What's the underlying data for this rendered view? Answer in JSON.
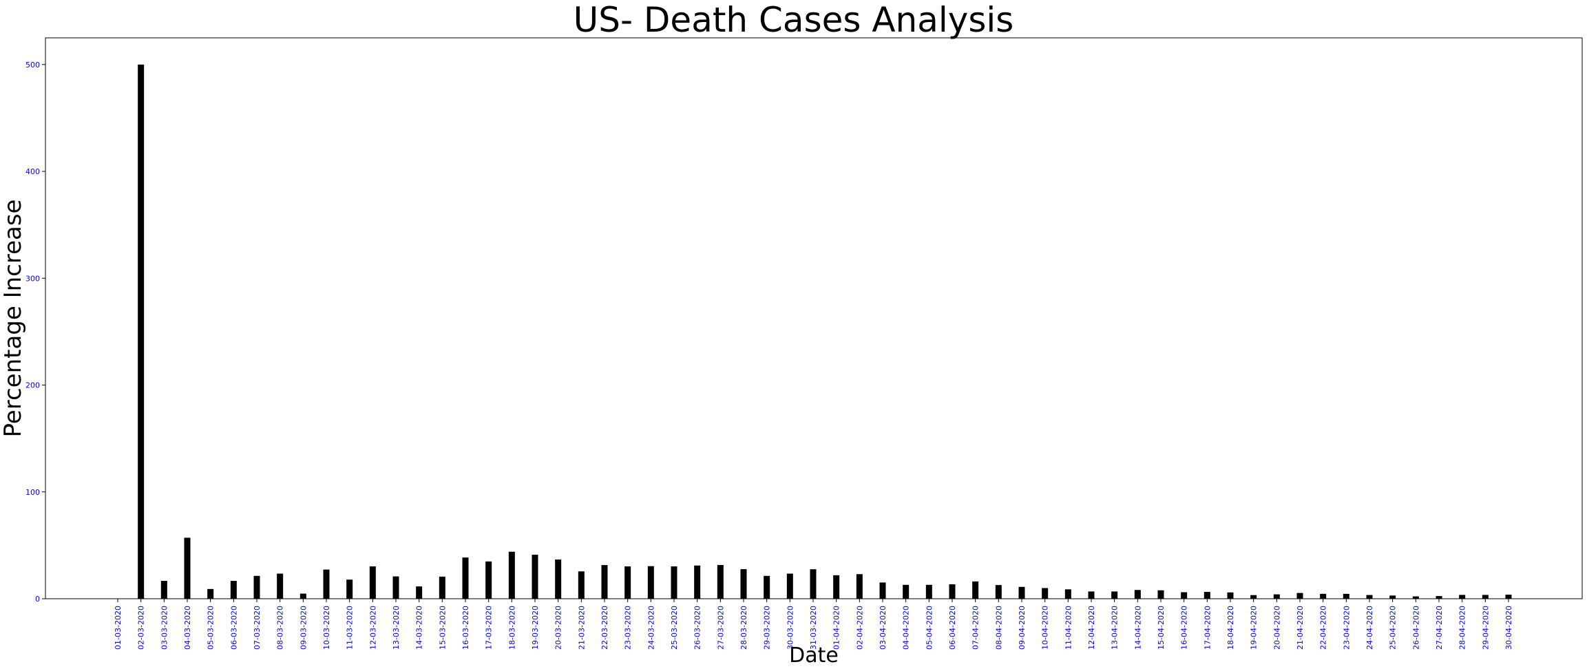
{
  "chart_data": {
    "type": "bar",
    "title": "US- Death Cases Analysis",
    "xlabel": "Date",
    "ylabel": "Percentage Increase",
    "ylim": [
      0,
      525
    ],
    "yticks": [
      0,
      100,
      200,
      300,
      400,
      500
    ],
    "grid": false,
    "bar_color": "#000000",
    "tick_label_color": "#0000ff",
    "categories": [
      "01-03-2020",
      "02-03-2020",
      "03-03-2020",
      "04-03-2020",
      "05-03-2020",
      "06-03-2020",
      "07-03-2020",
      "08-03-2020",
      "09-03-2020",
      "10-03-2020",
      "11-03-2020",
      "12-03-2020",
      "13-03-2020",
      "14-03-2020",
      "15-03-2020",
      "16-03-2020",
      "17-03-2020",
      "18-03-2020",
      "19-03-2020",
      "20-03-2020",
      "21-03-2020",
      "22-03-2020",
      "23-03-2020",
      "24-03-2020",
      "25-03-2020",
      "26-03-2020",
      "27-03-2020",
      "28-03-2020",
      "29-03-2020",
      "30-03-2020",
      "31-03-2020",
      "01-04-2020",
      "02-04-2020",
      "03-04-2020",
      "04-04-2020",
      "05-04-2020",
      "06-04-2020",
      "07-04-2020",
      "08-04-2020",
      "09-04-2020",
      "10-04-2020",
      "11-04-2020",
      "12-04-2020",
      "13-04-2020",
      "14-04-2020",
      "15-04-2020",
      "16-04-2020",
      "17-04-2020",
      "18-04-2020",
      "19-04-2020",
      "20-04-2020",
      "21-04-2020",
      "22-04-2020",
      "23-04-2020",
      "24-04-2020",
      "25-04-2020",
      "26-04-2020",
      "27-04-2020",
      "28-04-2020",
      "29-04-2020",
      "30-04-2020"
    ],
    "values": [
      0,
      500,
      16.7,
      57.1,
      9.1,
      16.7,
      21.4,
      23.5,
      4.8,
      27.3,
      17.9,
      30.3,
      20.9,
      11.5,
      20.7,
      38.6,
      34.9,
      44.0,
      41.2,
      36.7,
      25.6,
      31.5,
      30.3,
      30.5,
      30.3,
      31.1,
      31.6,
      27.7,
      21.4,
      23.5,
      27.6,
      22.0,
      23.0,
      15.2,
      13.0,
      13.0,
      13.5,
      16.2,
      12.8,
      11.1,
      10.0,
      8.8,
      6.8,
      6.8,
      8.2,
      7.9,
      6.1,
      6.4,
      5.9,
      3.4,
      4.1,
      5.4,
      4.6,
      4.6,
      3.5,
      3.0,
      2.2,
      2.5,
      3.6,
      3.6,
      3.8
    ]
  }
}
